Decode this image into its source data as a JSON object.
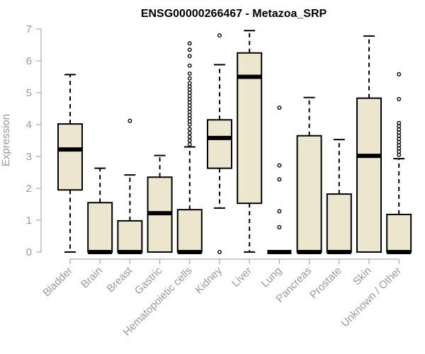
{
  "chart_data": {
    "type": "boxplot",
    "title": "ENSG00000266467 - Metazoa_SRP",
    "xlabel": "",
    "ylabel": "Expression",
    "ylim": [
      0,
      7
    ],
    "yticks": [
      0,
      1,
      2,
      3,
      4,
      5,
      6,
      7
    ],
    "colors": {
      "box_fill": "#ede6ce",
      "stroke": "#000000",
      "axis": "#999999",
      "text": "#999999"
    },
    "categories": [
      "Bladder",
      "Brain",
      "Breast",
      "Gastric",
      "Hematopoietic cells",
      "Kidney",
      "Liver",
      "Lung",
      "Pancreas",
      "Prostate",
      "Skin",
      "Unknown / Other"
    ],
    "boxes": [
      {
        "q1": 1.95,
        "median": 3.22,
        "q3": 4.02,
        "whisker_low": 0.0,
        "whisker_high": 5.57,
        "outliers": []
      },
      {
        "q1": 0.0,
        "median": 0.0,
        "q3": 1.55,
        "whisker_low": 0.0,
        "whisker_high": 2.63,
        "outliers": []
      },
      {
        "q1": 0.0,
        "median": 0.0,
        "q3": 0.98,
        "whisker_low": 0.0,
        "whisker_high": 2.42,
        "outliers": [
          4.12
        ]
      },
      {
        "q1": 0.0,
        "median": 1.22,
        "q3": 2.35,
        "whisker_low": 0.0,
        "whisker_high": 3.03,
        "outliers": []
      },
      {
        "q1": 0.0,
        "median": 0.0,
        "q3": 1.33,
        "whisker_low": 0.0,
        "whisker_high": 3.3,
        "outliers": [
          3.38,
          3.5,
          3.62,
          3.74,
          3.86,
          4.0,
          4.1,
          4.2,
          4.3,
          4.4,
          4.5,
          4.6,
          4.7,
          4.8,
          4.9,
          5.0,
          5.1,
          5.2,
          5.3,
          5.45,
          5.6,
          5.85,
          6.15,
          6.35,
          6.55
        ]
      },
      {
        "q1": 2.63,
        "median": 3.58,
        "q3": 4.15,
        "whisker_low": 1.38,
        "whisker_high": 5.88,
        "outliers": [
          6.8,
          0.0
        ]
      },
      {
        "q1": 1.53,
        "median": 5.5,
        "q3": 6.25,
        "whisker_low": 0.0,
        "whisker_high": 6.95,
        "outliers": []
      },
      {
        "q1": 0.0,
        "median": 0.0,
        "q3": 0.0,
        "whisker_low": 0.0,
        "whisker_high": 0.0,
        "outliers": [
          0.78,
          1.28,
          2.28,
          2.72,
          4.53
        ]
      },
      {
        "q1": 0.0,
        "median": 0.0,
        "q3": 3.65,
        "whisker_low": 0.0,
        "whisker_high": 4.85,
        "outliers": []
      },
      {
        "q1": 0.0,
        "median": 0.0,
        "q3": 1.82,
        "whisker_low": 0.0,
        "whisker_high": 3.53,
        "outliers": []
      },
      {
        "q1": 0.0,
        "median": 3.02,
        "q3": 4.83,
        "whisker_low": 0.0,
        "whisker_high": 6.78,
        "outliers": []
      },
      {
        "q1": 0.0,
        "median": 0.0,
        "q3": 1.18,
        "whisker_low": 0.0,
        "whisker_high": 2.93,
        "outliers": [
          3.05,
          3.15,
          3.25,
          3.35,
          3.45,
          3.55,
          3.65,
          3.75,
          3.85,
          3.95,
          4.05,
          4.8,
          5.58
        ]
      }
    ]
  }
}
